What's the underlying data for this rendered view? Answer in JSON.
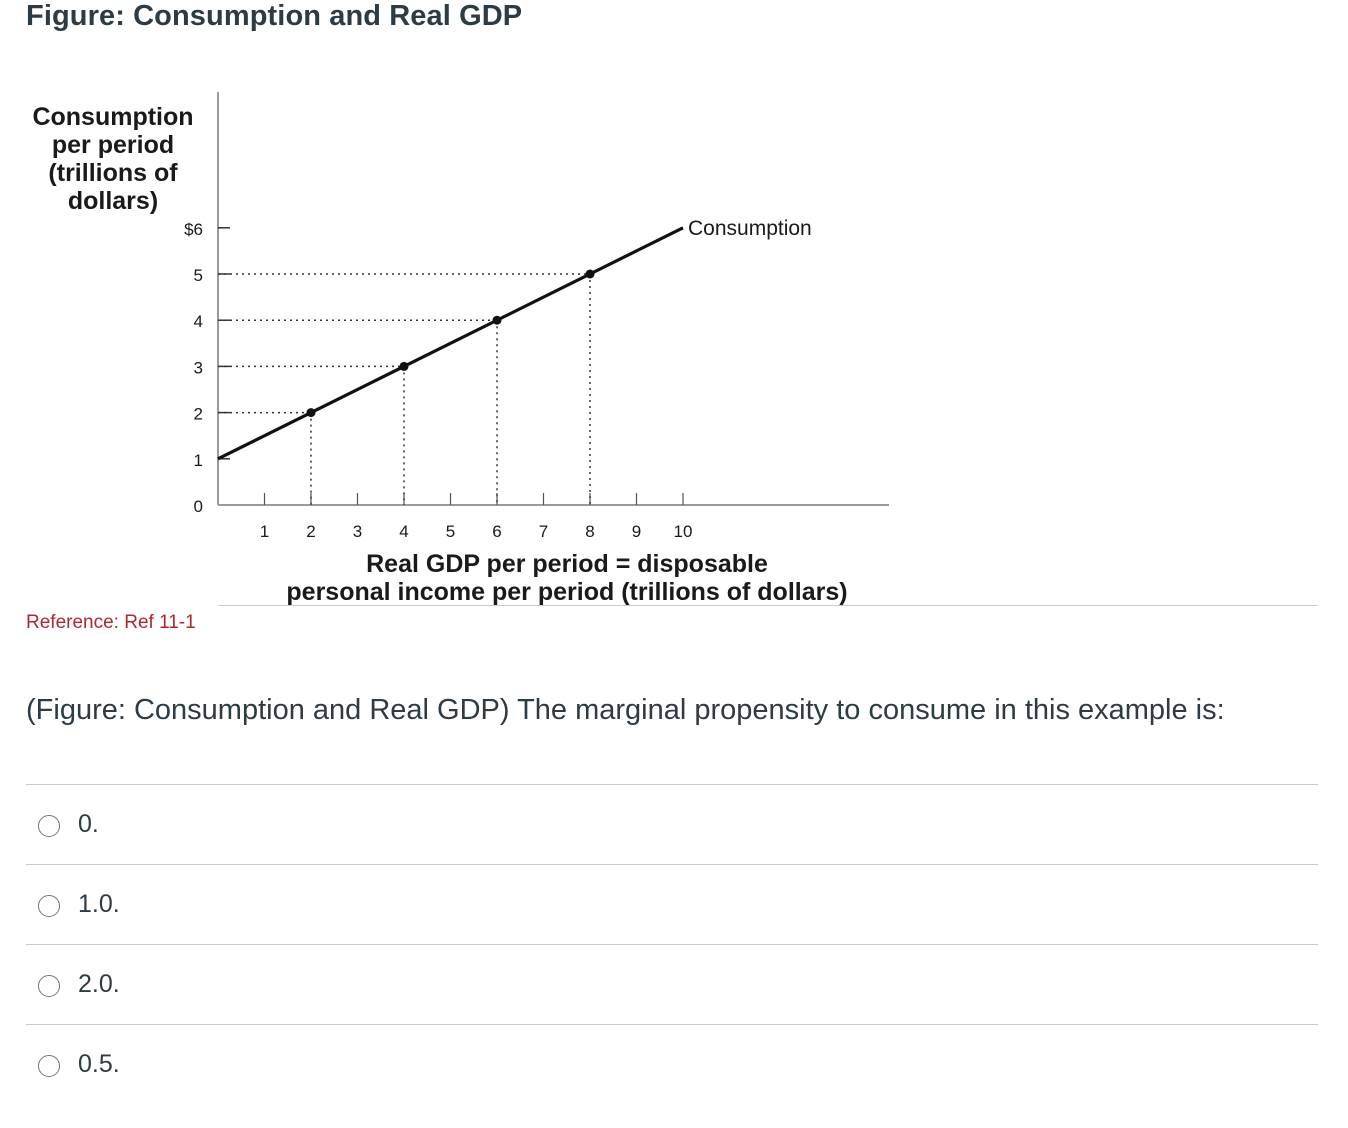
{
  "page": {
    "figure_title": "Figure: Consumption and Real GDP",
    "reference": "Reference: Ref 11-1",
    "question": "(Figure: Consumption and Real GDP) The marginal propensity to consume in this example is:",
    "answers": [
      {
        "label": "0."
      },
      {
        "label": "1.0."
      },
      {
        "label": "2.0."
      },
      {
        "label": "0.5."
      }
    ]
  },
  "chart_data": {
    "type": "line",
    "y_title_lines": [
      "Consumption",
      "per period",
      "(trillions of",
      "dollars)"
    ],
    "x_title_lines": [
      "Real GDP per period = disposable",
      "personal income per period (trillions of dollars)"
    ],
    "y_tick_labels": [
      "0",
      "1",
      "2",
      "3",
      "4",
      "5",
      "$6"
    ],
    "x_tick_labels": [
      "1",
      "2",
      "3",
      "4",
      "5",
      "6",
      "7",
      "8",
      "9",
      "10"
    ],
    "xlim": [
      0,
      14
    ],
    "ylim": [
      0,
      6
    ],
    "grid": false,
    "series": [
      {
        "name": "Consumption",
        "color": "#111111",
        "x": [
          0,
          10
        ],
        "y": [
          1,
          6
        ]
      }
    ],
    "highlighted_points": [
      {
        "x": 2,
        "y": 2
      },
      {
        "x": 4,
        "y": 3
      },
      {
        "x": 6,
        "y": 4
      },
      {
        "x": 8,
        "y": 5
      }
    ]
  }
}
